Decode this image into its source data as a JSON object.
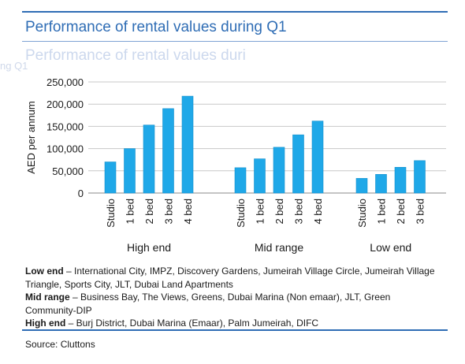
{
  "title": "Performance of rental values during Q1",
  "ghost_title": "Performance of rental values duri",
  "ghost_subtitle": "ng Q1",
  "colors": {
    "bar": "#1fa8e8",
    "bar_edge": "#1590cc",
    "grid": "#c8c8c8",
    "rule": "#2f6db5",
    "title": "#2f6db5"
  },
  "chart_data": {
    "type": "bar",
    "ylabel": "AED per annum",
    "ylim": [
      0,
      250000
    ],
    "yticks": [
      0,
      50000,
      100000,
      150000,
      200000,
      250000
    ],
    "ytick_labels": [
      "0",
      "50,000",
      "100,000",
      "150,000",
      "200,000",
      "250,000"
    ],
    "grid": true,
    "groups": [
      {
        "name": "High end",
        "categories": [
          "Studio",
          "1 bed",
          "2 bed",
          "3 bed",
          "4 bed"
        ],
        "values": [
          70000,
          100000,
          153000,
          190000,
          218000
        ]
      },
      {
        "name": "Mid range",
        "categories": [
          "Studio",
          "1 bed",
          "2 bed",
          "3 bed",
          "4 bed"
        ],
        "values": [
          57000,
          77000,
          103000,
          131000,
          162000
        ]
      },
      {
        "name": "Low end",
        "categories": [
          "Studio",
          "1 bed",
          "2 bed",
          "3 bed"
        ],
        "values": [
          33000,
          42000,
          58000,
          73000
        ]
      }
    ]
  },
  "legend": [
    {
      "label": "Low end",
      "text": " – International City, IMPZ, Discovery Gardens, Jumeirah Village Circle, Jumeirah Village Triangle, Sports City, JLT, Dubai Land Apartments"
    },
    {
      "label": "Mid range",
      "text": " – Business Bay, The Views, Greens, Dubai Marina (Non emaar), JLT, Green Community-DIP"
    },
    {
      "label": "High end",
      "text": " – Burj District, Dubai Marina (Emaar), Palm Jumeirah, DIFC"
    }
  ],
  "source": "Source: Cluttons"
}
